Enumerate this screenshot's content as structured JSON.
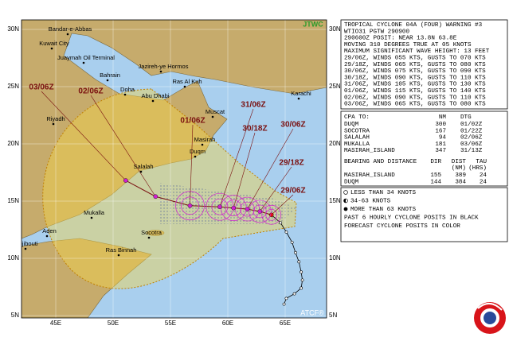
{
  "map": {
    "badge": "JTWC",
    "credit": "ATCF®",
    "lat_labels": [
      "30N",
      "25N",
      "20N",
      "15N",
      "10N",
      "5N"
    ],
    "lon_labels": [
      "45E",
      "50E",
      "55E",
      "60E",
      "65E"
    ],
    "places": [
      "Bandar-e-Abbas",
      "Kuwait City",
      "Juaymah Oil Terminal",
      "Jazireh-ye Hormos",
      "Bahrain",
      "Doha",
      "Abu Dhabi",
      "Ras Al Kuh",
      "Karachi",
      "Muscat",
      "Riyadh",
      "Masirah",
      "Duqm",
      "Salalah",
      "Mukalla",
      "Socotra",
      "Aden",
      "Djibouti",
      "Ras Binnah"
    ],
    "forecast": [
      {
        "label": "29/06Z",
        "lat": 13.8,
        "lon": 63.8
      },
      {
        "label": "29/18Z",
        "lat": 14.1,
        "lon": 62.8
      },
      {
        "label": "30/06Z",
        "lat": 14.3,
        "lon": 61.7
      },
      {
        "label": "30/18Z",
        "lat": 14.4,
        "lon": 60.5
      },
      {
        "label": "31/06Z",
        "lat": 14.5,
        "lon": 59.3
      },
      {
        "label": "01/06Z",
        "lat": 14.6,
        "lon": 56.7
      },
      {
        "label": "02/06Z",
        "lat": 15.4,
        "lon": 53.7
      },
      {
        "label": "03/06Z",
        "lat": 16.8,
        "lon": 51.1
      }
    ],
    "past_track": {
      "lat": [
        13.8,
        13.1,
        12.3,
        11.4,
        10.5,
        9.7,
        8.8,
        8.1,
        7.4,
        6.9,
        6.5,
        6.0
      ],
      "lon": [
        63.8,
        64.6,
        65.1,
        65.6,
        65.9,
        66.2,
        66.4,
        66.5,
        66.4,
        65.8,
        65.1,
        64.9
      ]
    }
  },
  "warning": {
    "lines": [
      "TROPICAL CYCLONE 04A (FOUR) WARNING #3",
      "WTIO31 PGTW 290900",
      "290600Z POSIT: NEAR 13.8N 63.8E",
      "MOVING 310 DEGREES TRUE AT 05 KNOTS",
      "MAXIMUM SIGNIFICANT WAVE HEIGHT: 13 FEET",
      "29/06Z, WINDS 055 KTS, GUSTS TO 070 KTS",
      "29/18Z, WINDS 065 KTS, GUSTS TO 080 KTS",
      "30/06Z, WINDS 075 KTS, GUSTS TO 090 KTS",
      "30/18Z, WINDS 090 KTS, GUSTS TO 110 KTS",
      "31/06Z, WINDS 105 KTS, GUSTS TO 130 KTS",
      "01/06Z, WINDS 115 KTS, GUSTS TO 140 KTS",
      "02/06Z, WINDS 090 KTS, GUSTS TO 110 KTS",
      "03/06Z, WINDS 065 KTS, GUSTS TO 080 KTS"
    ]
  },
  "cpa": {
    "header": [
      "CPA TO:",
      "NM",
      "DTG"
    ],
    "rows": [
      [
        "DUQM",
        300,
        "01/02Z"
      ],
      [
        "SOCOTRA",
        167,
        "01/22Z"
      ],
      [
        "SALALAH",
        94,
        "02/06Z"
      ],
      [
        "MUKALLA",
        181,
        "03/06Z"
      ],
      [
        "MASIRAH_ISLAND",
        347,
        "31/13Z"
      ]
    ]
  },
  "bearing": {
    "header": [
      "BEARING AND DISTANCE",
      "DIR",
      "DIST",
      "TAU"
    ],
    "subheader": [
      "(NM)",
      "(HRS)"
    ],
    "rows": [
      [
        "MASIRAH_ISLAND",
        155,
        389,
        24
      ],
      [
        "DUQM",
        144,
        384,
        24
      ]
    ]
  },
  "legend": {
    "items": [
      "LESS THAN 34 KNOTS",
      "34-63 KNOTS",
      "MORE THAN 63 KNOTS",
      "PAST 6 HOURLY CYCLONE POSITS IN BLACK",
      "FORECAST CYCLONE POSITS IN COLOR"
    ]
  }
}
